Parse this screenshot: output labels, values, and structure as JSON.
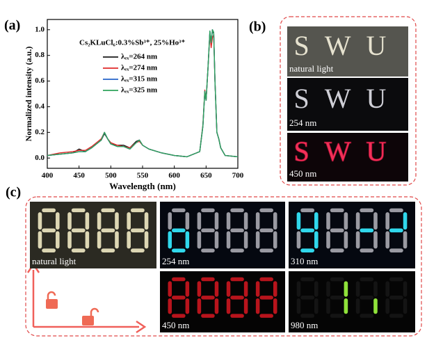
{
  "panels": {
    "a": {
      "label": "(a)"
    },
    "b": {
      "label": "(b)",
      "images": [
        {
          "caption": "natural light",
          "sign": "SWU"
        },
        {
          "caption": "254 nm",
          "sign": "SWU"
        },
        {
          "caption": "450 nm",
          "sign": "SWU"
        }
      ]
    },
    "c": {
      "label": "(c)",
      "images": [
        {
          "caption": "natural light"
        },
        {
          "caption": "254 nm"
        },
        {
          "caption": "310 nm"
        },
        {
          "caption": "450 nm"
        },
        {
          "caption": "980 nm"
        }
      ]
    }
  },
  "chart_data": {
    "type": "line",
    "annotation": "Cs₂KLuCl₆:0.3%Sb³⁺, 25%Ho³⁺",
    "x_label": "Wavelength (nm)",
    "y_label": "Normalized intensity (a.u.)",
    "xlim": [
      400,
      700
    ],
    "ylim": [
      -0.08,
      1.08
    ],
    "xticks": [
      400,
      450,
      500,
      550,
      600,
      650,
      700
    ],
    "yticks": [
      {
        "value": 0,
        "label": "0.0"
      },
      {
        "value": 0.2,
        "label": "0.2"
      },
      {
        "value": 0.4,
        "label": "0.4"
      },
      {
        "value": 0.6,
        "label": "0.6"
      },
      {
        "value": 0.8,
        "label": "0.8"
      },
      {
        "value": 1,
        "label": "1.0"
      }
    ],
    "grid": false,
    "x": [
      400,
      420,
      440,
      450,
      460,
      470,
      480,
      485,
      490,
      495,
      500,
      510,
      520,
      530,
      540,
      545,
      550,
      560,
      580,
      600,
      620,
      640,
      645,
      648,
      650,
      653,
      656,
      658,
      660,
      662,
      664,
      667,
      670,
      673,
      680,
      700
    ],
    "series": [
      {
        "name": "λₑₓ=264 nm",
        "color": "#1a1a1a",
        "values": [
          0.02,
          0.03,
          0.04,
          0.07,
          0.05,
          0.08,
          0.12,
          0.14,
          0.19,
          0.15,
          0.11,
          0.1,
          0.1,
          0.08,
          0.13,
          0.14,
          0.1,
          0.07,
          0.04,
          0.02,
          0.01,
          0.05,
          0.25,
          0.52,
          0.45,
          0.7,
          0.98,
          0.9,
          1.0,
          0.97,
          0.6,
          0.2,
          0.15,
          0.08,
          0.02,
          0.01
        ]
      },
      {
        "name": "λₑₓ=274 nm",
        "color": "#e02828",
        "values": [
          0.02,
          0.04,
          0.05,
          0.06,
          0.06,
          0.09,
          0.13,
          0.15,
          0.2,
          0.15,
          0.12,
          0.1,
          0.09,
          0.08,
          0.12,
          0.13,
          0.1,
          0.07,
          0.04,
          0.02,
          0.01,
          0.05,
          0.26,
          0.53,
          0.45,
          0.7,
          0.97,
          0.86,
          0.94,
          0.96,
          0.6,
          0.2,
          0.15,
          0.08,
          0.02,
          0.01
        ]
      },
      {
        "name": "λₑₓ=315 nm",
        "color": "#2563c9",
        "values": [
          0.02,
          0.03,
          0.04,
          0.05,
          0.05,
          0.08,
          0.12,
          0.14,
          0.2,
          0.15,
          0.11,
          0.09,
          0.09,
          0.07,
          0.12,
          0.14,
          0.1,
          0.07,
          0.04,
          0.02,
          0.01,
          0.05,
          0.25,
          0.52,
          0.45,
          0.7,
          0.99,
          0.9,
          1.0,
          0.98,
          0.6,
          0.2,
          0.15,
          0.08,
          0.02,
          0.01
        ]
      },
      {
        "name": "λₑₓ=325 nm",
        "color": "#2ea35c",
        "values": [
          0.02,
          0.03,
          0.04,
          0.05,
          0.05,
          0.08,
          0.12,
          0.14,
          0.2,
          0.15,
          0.11,
          0.09,
          0.09,
          0.07,
          0.12,
          0.14,
          0.1,
          0.07,
          0.04,
          0.02,
          0.01,
          0.05,
          0.25,
          0.52,
          0.45,
          0.7,
          0.99,
          0.9,
          1.0,
          0.98,
          0.6,
          0.2,
          0.15,
          0.08,
          0.02,
          0.01
        ]
      }
    ]
  }
}
